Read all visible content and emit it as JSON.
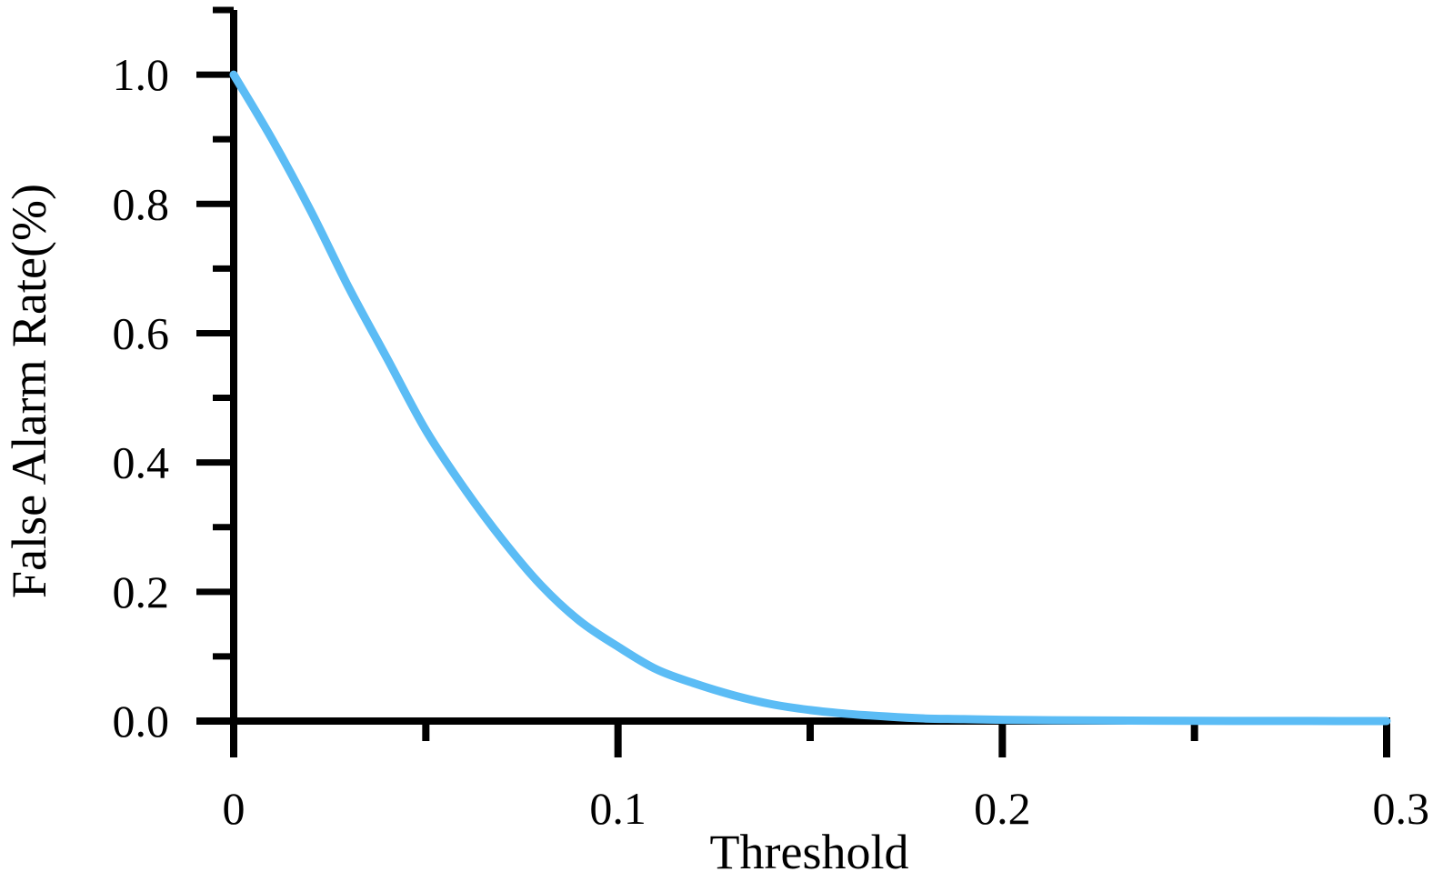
{
  "chart_data": {
    "type": "line",
    "title": "",
    "xlabel": "Threshold",
    "ylabel": "False Alarm Rate(%)",
    "xlim": [
      0,
      0.3
    ],
    "ylim": [
      0,
      1.1
    ],
    "x_ticks": [
      0,
      0.1,
      0.2,
      0.3
    ],
    "x_tick_labels": [
      "0",
      "0.1",
      "0.2",
      "0.3"
    ],
    "x_minor_ticks": [
      0.05,
      0.15,
      0.25
    ],
    "y_ticks": [
      0,
      0.2,
      0.4,
      0.6,
      0.8,
      1.0
    ],
    "y_tick_labels": [
      "0.0",
      "0.2",
      "0.4",
      "0.6",
      "0.8",
      "1.0"
    ],
    "y_minor_ticks": [
      0.1,
      0.3,
      0.5,
      0.7,
      0.9,
      1.1
    ],
    "grid": false,
    "legend": "none",
    "series_color": "#5bbcf5",
    "series": [
      {
        "x": [
          0,
          0.01,
          0.02,
          0.03,
          0.04,
          0.05,
          0.06,
          0.07,
          0.08,
          0.09,
          0.1,
          0.11,
          0.12,
          0.13,
          0.14,
          0.15,
          0.16,
          0.17,
          0.18,
          0.19,
          0.2,
          0.22,
          0.24,
          0.26,
          0.28,
          0.3
        ],
        "y": [
          1.0,
          0.9,
          0.79,
          0.67,
          0.56,
          0.45,
          0.36,
          0.28,
          0.21,
          0.155,
          0.115,
          0.08,
          0.058,
          0.04,
          0.026,
          0.017,
          0.011,
          0.007,
          0.004,
          0.003,
          0.002,
          0.001,
          0.0005,
          0.0002,
          0.0001,
          0.0
        ]
      }
    ]
  }
}
